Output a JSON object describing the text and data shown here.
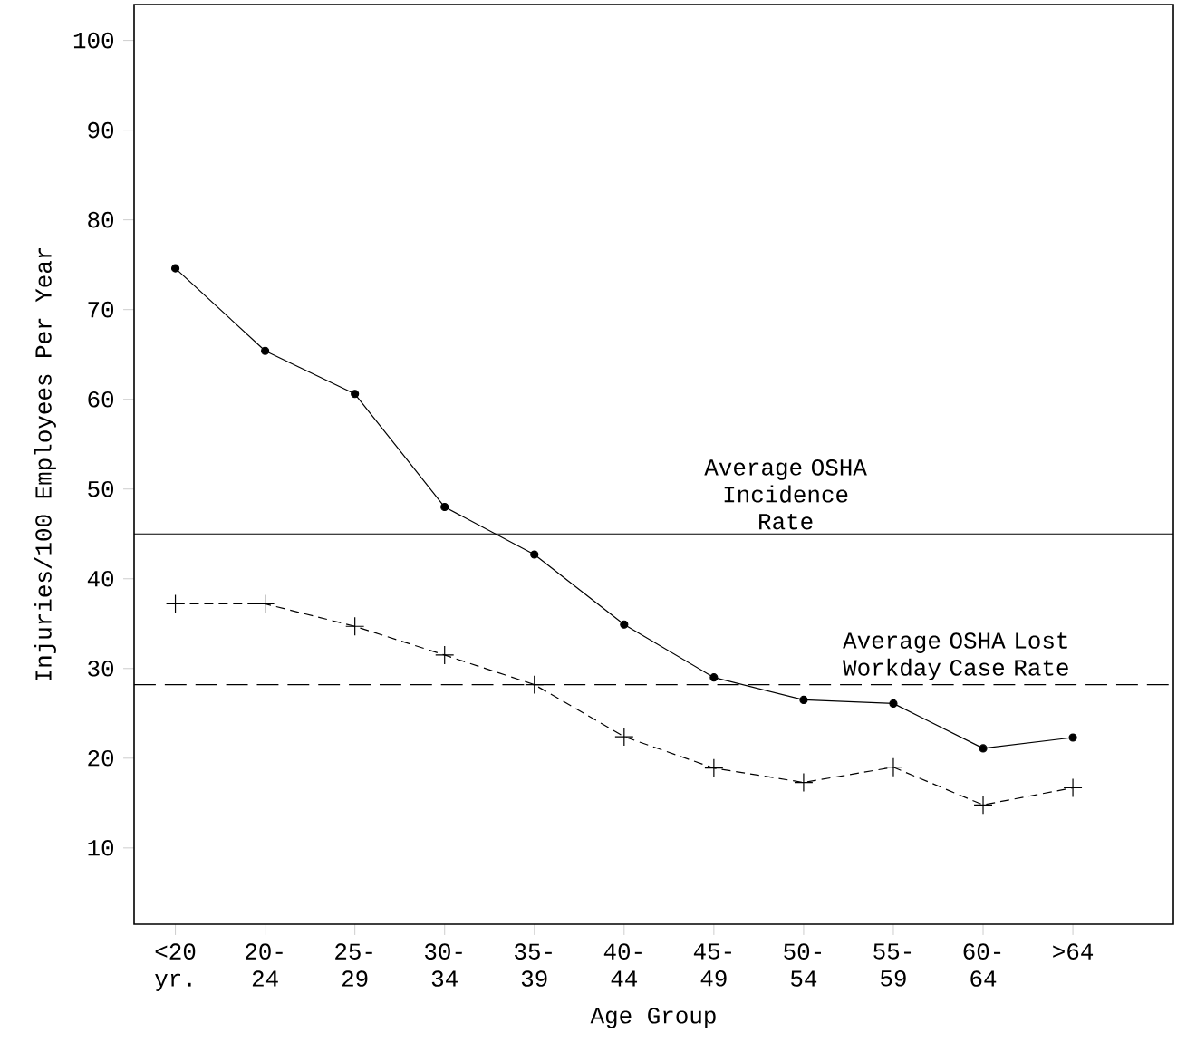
{
  "chart_data": {
    "type": "line",
    "xlabel": "Age Group",
    "ylabel": "Injuries/100 Employees Per Year",
    "categories": [
      "<20 yr.",
      "20- 24",
      "25- 29",
      "30- 34",
      "35- 39",
      "40- 44",
      "45- 49",
      "50- 54",
      "55- 59",
      "60- 64",
      ">64"
    ],
    "series": [
      {
        "color": "#000000",
        "marker": "circle",
        "line_style": "solid",
        "values": [
          74.6,
          65.4,
          60.6,
          48.0,
          42.7,
          34.9,
          29.0,
          26.5,
          26.1,
          21.1,
          22.3
        ]
      },
      {
        "color": "#000000",
        "marker": "cross",
        "line_style": "dashed",
        "values": [
          37.2,
          37.2,
          34.7,
          31.5,
          28.2,
          22.4,
          18.9,
          17.3,
          19.0,
          14.8,
          16.7
        ]
      }
    ],
    "ylim": [
      1.5,
      104
    ],
    "yticks": [
      10,
      20,
      30,
      40,
      50,
      60,
      70,
      80,
      90,
      100
    ],
    "ref_lines": [
      {
        "axis": "y",
        "value": 45,
        "label": "Average OSHA Incidence Rate",
        "line_style": "solid",
        "color": "#000000"
      },
      {
        "axis": "y",
        "value": 28.2,
        "label": "Average OSHA Lost Workday Case Rate",
        "line_style": "dashed",
        "color": "#000000"
      }
    ]
  }
}
